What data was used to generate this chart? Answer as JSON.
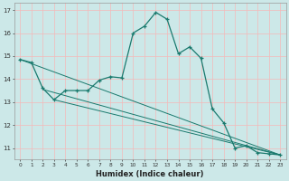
{
  "xlabel": "Humidex (Indice chaleur)",
  "bg_color": "#cce8e8",
  "grid_color": "#f5b8b8",
  "line_color": "#1a7a6e",
  "main_x": [
    0,
    1,
    2,
    3,
    4,
    5,
    6,
    7,
    8,
    9,
    10,
    11,
    12,
    13,
    14,
    15,
    16,
    17,
    18,
    19,
    20,
    21,
    22,
    23
  ],
  "main_y": [
    14.85,
    14.72,
    13.6,
    13.1,
    13.5,
    13.5,
    13.5,
    13.95,
    14.1,
    14.05,
    16.0,
    16.3,
    16.9,
    16.6,
    15.1,
    15.4,
    14.9,
    12.7,
    12.1,
    11.0,
    11.1,
    10.8,
    10.75,
    10.7
  ],
  "line1_x": [
    0,
    23
  ],
  "line1_y": [
    14.85,
    10.7
  ],
  "line2_x": [
    2,
    23
  ],
  "line2_y": [
    13.55,
    10.7
  ],
  "line3_x": [
    3,
    23
  ],
  "line3_y": [
    13.1,
    10.7
  ],
  "ylim": [
    10.5,
    17.3
  ],
  "xlim": [
    -0.5,
    23.5
  ],
  "yticks": [
    11,
    12,
    13,
    14,
    15,
    16,
    17
  ],
  "xticks": [
    0,
    1,
    2,
    3,
    4,
    5,
    6,
    7,
    8,
    9,
    10,
    11,
    12,
    13,
    14,
    15,
    16,
    17,
    18,
    19,
    20,
    21,
    22,
    23
  ]
}
